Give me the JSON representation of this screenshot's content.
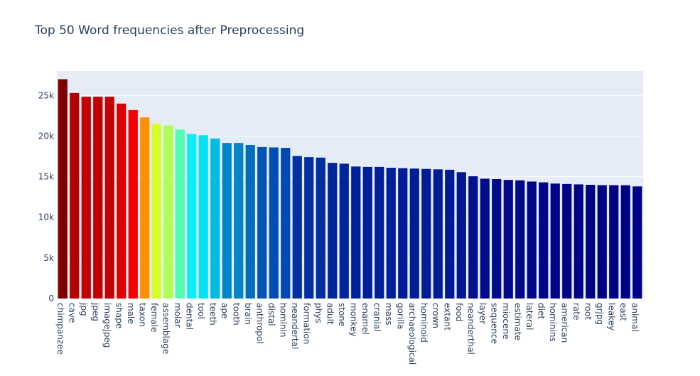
{
  "chart_data": {
    "type": "bar",
    "title": "Top 50 Word frequencies after Preprocessing",
    "xlabel": "",
    "ylabel": "",
    "ylim": [
      0,
      28000
    ],
    "yticks": [
      {
        "value": 0,
        "label": "0"
      },
      {
        "value": 5000,
        "label": "5k"
      },
      {
        "value": 10000,
        "label": "10k"
      },
      {
        "value": 15000,
        "label": "15k"
      },
      {
        "value": 20000,
        "label": "20k"
      },
      {
        "value": 25000,
        "label": "25k"
      }
    ],
    "grid": true,
    "legend": "none",
    "plot_background": "#e5ecf6",
    "grid_color": "#ffffff",
    "colorscale": "Jet",
    "categories": [
      "chimpanzee",
      "cave",
      "jpg",
      "jpeg",
      "imagejpeg",
      "shape",
      "male",
      "taxon",
      "female",
      "assemblage",
      "molar",
      "dental",
      "tool",
      "teeth",
      "ape",
      "tooth",
      "brain",
      "anthropol",
      "distal",
      "hominin",
      "neandertal",
      "formation",
      "phys",
      "adult",
      "stone",
      "monkey",
      "enamel",
      "cranial",
      "mass",
      "gorilla",
      "archaeological",
      "hominoid",
      "crown",
      "extant",
      "food",
      "neanderthal",
      "layer",
      "sequence",
      "miocene",
      "estimate",
      "lateral",
      "diet",
      "hominins",
      "american",
      "rate",
      "root",
      "grjpg",
      "leakey",
      "east",
      "animal"
    ],
    "values": [
      27000,
      25300,
      24850,
      24850,
      24850,
      24000,
      23200,
      22300,
      21500,
      21300,
      20800,
      20250,
      20100,
      19700,
      19150,
      19150,
      18900,
      18650,
      18600,
      18550,
      17550,
      17400,
      17350,
      16700,
      16600,
      16250,
      16200,
      16200,
      16100,
      16050,
      16000,
      15950,
      15900,
      15850,
      15550,
      15050,
      14750,
      14700,
      14600,
      14550,
      14400,
      14300,
      14150,
      14100,
      14050,
      14000,
      13950,
      13950,
      13950,
      13800
    ]
  }
}
